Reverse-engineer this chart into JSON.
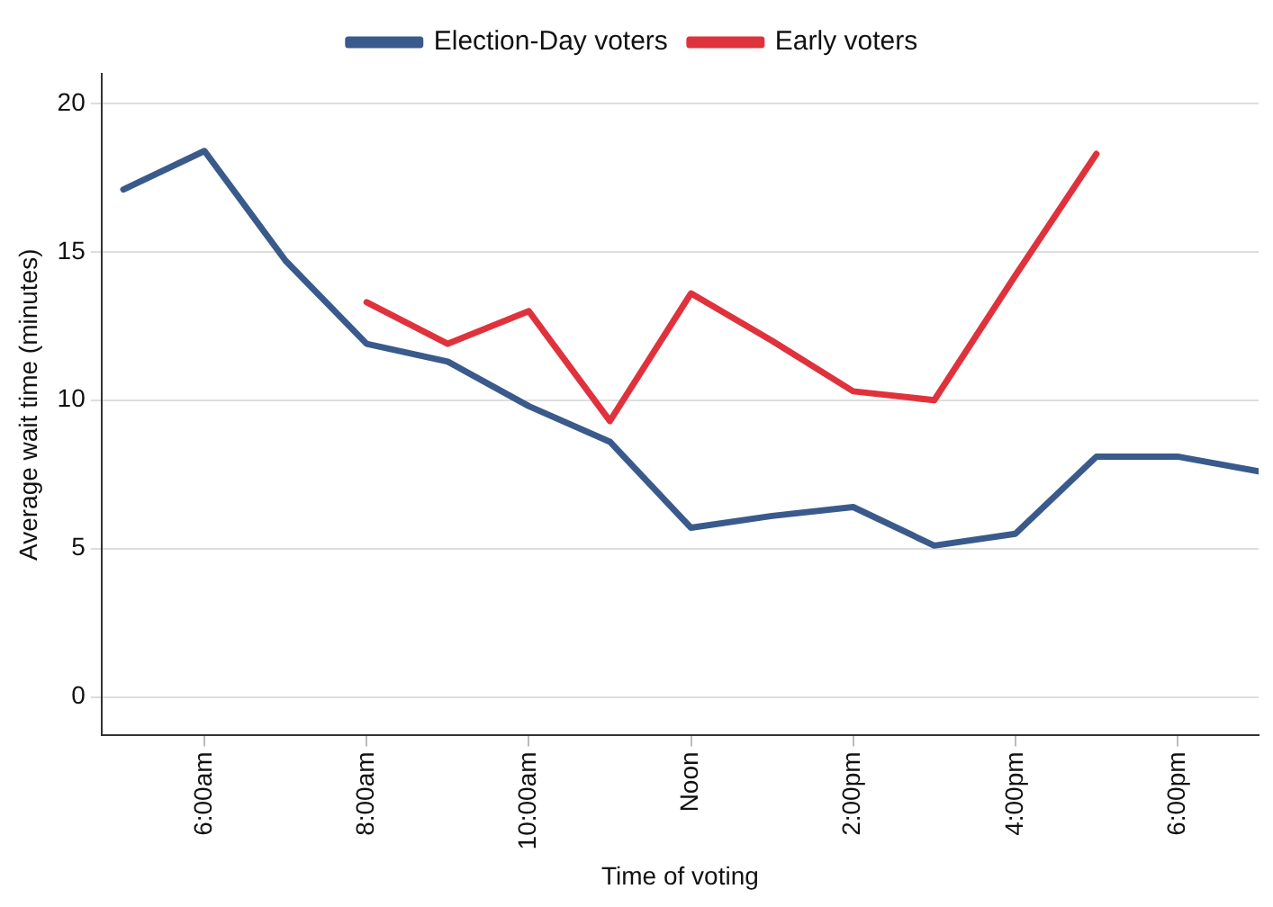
{
  "chart_data": {
    "type": "line",
    "xlabel": "Time of voting",
    "ylabel": "Average wait time (minutes)",
    "x": [
      5,
      6,
      7,
      8,
      9,
      10,
      11,
      12,
      13,
      14,
      15,
      16,
      17,
      18,
      19
    ],
    "series": [
      {
        "name": "Election-Day voters",
        "color": "#3a5a8c",
        "values": [
          17.1,
          18.4,
          14.7,
          11.9,
          11.3,
          9.8,
          8.6,
          5.7,
          6.1,
          6.4,
          5.1,
          5.5,
          8.1,
          8.1,
          7.6
        ]
      },
      {
        "name": "Early voters",
        "color": "#e0323c",
        "values": [
          null,
          null,
          null,
          13.3,
          11.9,
          13.0,
          9.3,
          13.6,
          12.0,
          10.3,
          10.0,
          14.2,
          18.3,
          null,
          null
        ]
      }
    ],
    "xlim": [
      4.73,
      19
    ],
    "xticks": [
      {
        "value": 6,
        "label": "6:00am"
      },
      {
        "value": 8,
        "label": "8:00am"
      },
      {
        "value": 10,
        "label": "10:00am"
      },
      {
        "value": 12,
        "label": "Noon"
      },
      {
        "value": 14,
        "label": "2:00pm"
      },
      {
        "value": 16,
        "label": "4:00pm"
      },
      {
        "value": 18,
        "label": "6:00pm"
      }
    ],
    "ylim": [
      -1.3,
      21
    ],
    "yticks": [
      0,
      5,
      10,
      15,
      20
    ],
    "grid": "y",
    "legend": "top",
    "marker": "none",
    "line_style": "solid"
  }
}
